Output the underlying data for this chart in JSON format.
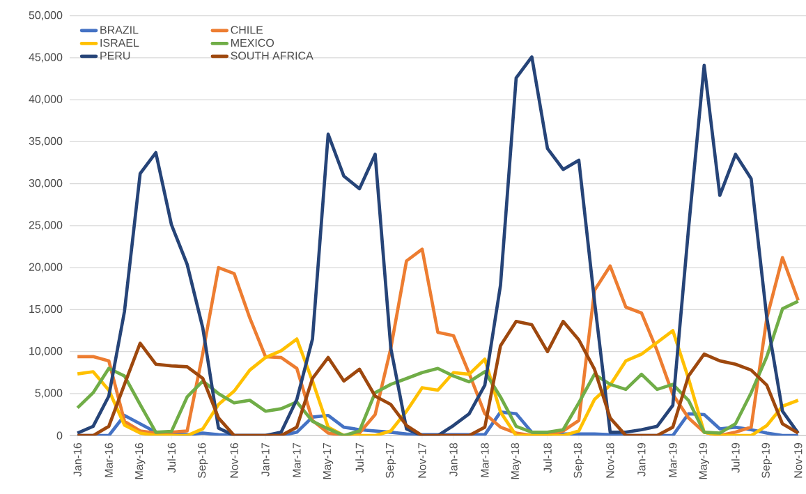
{
  "chart_data": {
    "type": "line",
    "categories": [
      "Jan-16",
      null,
      "Mar-16",
      null,
      "May-16",
      null,
      "Jul-16",
      null,
      "Sep-16",
      null,
      "Nov-16",
      null,
      "Jan-17",
      null,
      "Mar-17",
      null,
      "May-17",
      null,
      "Jul-17",
      null,
      "Sep-17",
      null,
      "Nov-17",
      null,
      "Jan-18",
      null,
      "Mar-18",
      null,
      "May-18",
      null,
      "Jul-18",
      null,
      "Sep-18",
      null,
      "Nov-18",
      null,
      "Jan-19",
      null,
      "Mar-19",
      null,
      "May-19",
      null,
      "Jul-19",
      null,
      "Sep-19",
      null,
      "Nov-19"
    ],
    "series": [
      {
        "name": "BRAZIL",
        "color": "#4472c4",
        "values": [
          0,
          0,
          0,
          2400,
          1400,
          400,
          200,
          100,
          300,
          100,
          0,
          0,
          0,
          0,
          400,
          2200,
          2400,
          1000,
          700,
          550,
          400,
          200,
          100,
          100,
          100,
          100,
          100,
          2800,
          2600,
          400,
          200,
          200,
          200,
          200,
          100,
          0,
          0,
          0,
          0,
          2600,
          2500,
          800,
          1000,
          700,
          300,
          0,
          0
        ]
      },
      {
        "name": "CHILE",
        "color": "#ed7d31",
        "values": [
          9400,
          9400,
          8900,
          1700,
          550,
          300,
          400,
          550,
          9800,
          20000,
          19300,
          14000,
          9400,
          9300,
          8000,
          1800,
          300,
          0,
          300,
          2500,
          10400,
          20800,
          22200,
          12300,
          11900,
          7400,
          2600,
          1000,
          300,
          0,
          0,
          550,
          1800,
          17300,
          20200,
          15300,
          14600,
          10100,
          4900,
          2100,
          400,
          0,
          400,
          1000,
          14000,
          21200,
          16100
        ]
      },
      {
        "name": "ISRAEL",
        "color": "#ffc000",
        "values": [
          7350,
          7600,
          5400,
          1250,
          300,
          0,
          0,
          0,
          800,
          3700,
          5300,
          7800,
          9300,
          10100,
          11500,
          6500,
          1000,
          0,
          0,
          0,
          550,
          2900,
          5700,
          5400,
          7500,
          7300,
          9100,
          2800,
          0,
          0,
          0,
          0,
          550,
          4300,
          6000,
          8900,
          9700,
          11100,
          12500,
          6800,
          400,
          0,
          0,
          0,
          1200,
          3500,
          4200
        ]
      },
      {
        "name": "MEXICO",
        "color": "#70ad47",
        "values": [
          3300,
          5100,
          8000,
          7100,
          3700,
          400,
          500,
          4600,
          6500,
          5000,
          3900,
          4200,
          2900,
          3200,
          4000,
          1700,
          800,
          0,
          550,
          5100,
          6100,
          6800,
          7500,
          8000,
          7100,
          6400,
          7600,
          4600,
          1100,
          400,
          400,
          700,
          3900,
          7300,
          6100,
          5500,
          7300,
          5500,
          6100,
          4200,
          400,
          300,
          1400,
          5100,
          9400,
          15100,
          16000
        ]
      },
      {
        "name": "PERU",
        "color": "#264478",
        "values": [
          300,
          1100,
          4700,
          14800,
          31200,
          33700,
          25100,
          20400,
          12800,
          900,
          0,
          0,
          0,
          400,
          4300,
          11500,
          35900,
          30900,
          29400,
          33500,
          10400,
          800,
          0,
          0,
          1200,
          2600,
          6000,
          17900,
          42600,
          45100,
          34200,
          31700,
          32800,
          16000,
          400,
          400,
          700,
          1100,
          3600,
          24600,
          44100,
          28600,
          33500,
          30600,
          14000,
          2900,
          300
        ]
      },
      {
        "name": "SOUTH AFRICA",
        "color": "#9e480e",
        "values": [
          0,
          0,
          1100,
          6100,
          11000,
          8500,
          8300,
          8200,
          6800,
          2100,
          0,
          0,
          0,
          0,
          1000,
          6800,
          9300,
          6500,
          7900,
          4700,
          3700,
          1200,
          0,
          0,
          0,
          0,
          1000,
          10700,
          13600,
          13200,
          10000,
          13600,
          11400,
          7900,
          2100,
          0,
          0,
          0,
          1000,
          7100,
          9700,
          8900,
          8500,
          7800,
          6000,
          1400,
          300
        ]
      }
    ],
    "ylim": [
      0,
      50000
    ],
    "yticks": [
      0,
      {
        "value": 5000,
        "label": "5,000"
      },
      {
        "value": 10000,
        "label": "10,000"
      },
      {
        "value": 15000,
        "label": "15,000"
      },
      {
        "value": 20000,
        "label": "20,000"
      },
      {
        "value": 25000,
        "label": "25,000"
      },
      {
        "value": 30000,
        "label": "30,000"
      },
      {
        "value": 35000,
        "label": "35,000"
      },
      {
        "value": 40000,
        "label": "40,000"
      },
      {
        "value": 45000,
        "label": "45,000"
      },
      {
        "value": 50000,
        "label": "50,000"
      }
    ],
    "grid": "y",
    "legend": "top left"
  }
}
